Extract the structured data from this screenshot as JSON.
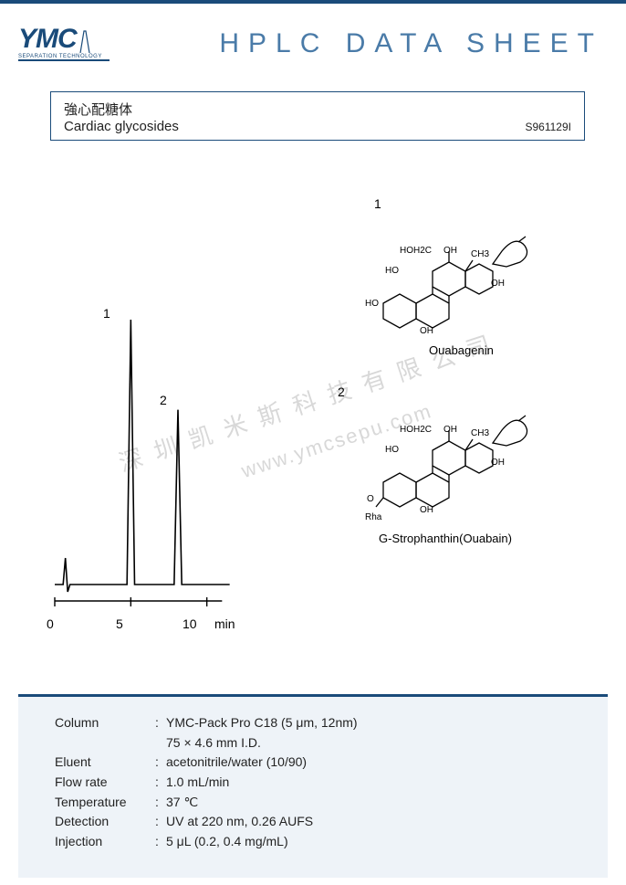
{
  "header": {
    "logo_text": "YMC",
    "logo_subtitle": "SEPARATION TECHNOLOGY",
    "page_title": "HPLC DATA SHEET",
    "header_color": "#1a4b7a",
    "title_color": "#4a7ba8"
  },
  "sample": {
    "name_jp": "強心配糖体",
    "name_en": "Cardiac glycosides",
    "sheet_id": "S961129I",
    "border_color": "#1a4b7a"
  },
  "chromatogram": {
    "type": "line",
    "x_axis_unit": "min",
    "x_ticks": [
      0,
      5,
      10
    ],
    "xlim": [
      0,
      12
    ],
    "baseline_y": 360,
    "stroke_color": "#000000",
    "stroke_width": 1.6,
    "peaks": [
      {
        "id": 1,
        "label": "1",
        "rt_min": 5.0,
        "height_rel": 1.0,
        "width_min": 0.5
      },
      {
        "id": 2,
        "label": "2",
        "rt_min": 8.1,
        "height_rel": 0.66,
        "width_min": 0.5
      }
    ],
    "injection_spike": {
      "rt_min": 0.7,
      "height_rel": 0.1
    }
  },
  "compounds": [
    {
      "index": "1",
      "name": "Ouabagenin",
      "functional_groups": [
        "HOH2C",
        "OH",
        "CH3",
        "HO",
        "OH",
        "HO",
        "OH"
      ]
    },
    {
      "index": "2",
      "name": "G-Strophanthin(Ouabain)",
      "functional_groups": [
        "HOH2C",
        "OH",
        "CH3",
        "HO",
        "OH",
        "O",
        "OH",
        "Rha"
      ]
    }
  ],
  "watermark": {
    "text_cn": "深圳凯米斯科技有限公司",
    "text_url": "www.ymcsepu.com",
    "color": "#d8d8d8"
  },
  "conditions": {
    "background_color": "#eef3f8",
    "border_top_color": "#1a4b7a",
    "rows": [
      {
        "key": "Column",
        "value": "YMC-Pack Pro C18 (5 μm, 12nm)"
      },
      {
        "key": "",
        "value": "75 × 4.6 mm I.D."
      },
      {
        "key": "Eluent",
        "value": "acetonitrile/water (10/90)"
      },
      {
        "key": "Flow rate",
        "value": "1.0 mL/min"
      },
      {
        "key": "Temperature",
        "value": "37 ℃"
      },
      {
        "key": "Detection",
        "value": "UV at 220 nm, 0.26 AUFS"
      },
      {
        "key": "Injection",
        "value": "5 μL (0.2, 0.4 mg/mL)"
      }
    ]
  }
}
